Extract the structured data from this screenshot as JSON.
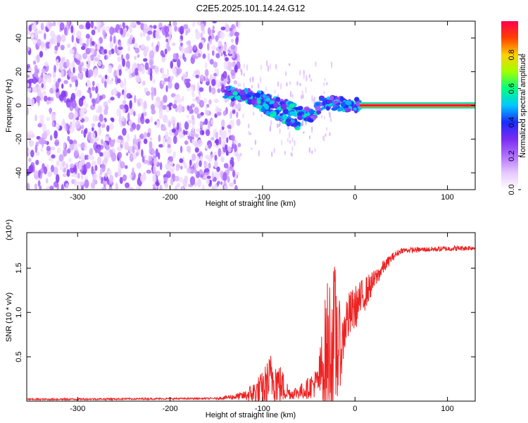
{
  "title": "C2E5.2025.101.14.24.G12",
  "chart_data": [
    {
      "type": "heatmap",
      "xlabel": "Height of straight line (km)",
      "ylabel": "Frequency (Hz)",
      "xlim": [
        -355,
        130
      ],
      "ylim": [
        -50,
        50
      ],
      "xticks": [
        -300,
        -200,
        -100,
        0,
        100
      ],
      "yticks": [
        -40,
        -20,
        0,
        20,
        40
      ],
      "colorbar": {
        "label": "Normalized spectral amplitude",
        "range": [
          0,
          1
        ],
        "ticks": [
          "0.0",
          "0.2",
          "0.4",
          "0.6",
          "0.8"
        ],
        "tick_values": [
          0.0,
          0.2,
          0.4,
          0.6,
          0.8
        ],
        "colormap": [
          "#ffffff",
          "#e6c8ff",
          "#b070ff",
          "#7a2cf0",
          "#1a2cff",
          "#00c8ff",
          "#00ff80",
          "#a0ff00",
          "#ffd000",
          "#ff4000",
          "#ff0050"
        ]
      },
      "noise_region": {
        "x": [
          -355,
          -125
        ],
        "y": [
          -50,
          50
        ],
        "amplitude": [
          0.05,
          0.3
        ]
      },
      "ridge": [
        {
          "x": -140,
          "y": 8
        },
        {
          "x": -120,
          "y": 6
        },
        {
          "x": -100,
          "y": 4
        },
        {
          "x": -80,
          "y": 0
        },
        {
          "x": -60,
          "y": -4
        },
        {
          "x": -45,
          "y": -6
        },
        {
          "x": -35,
          "y": 2
        },
        {
          "x": -20,
          "y": 1
        },
        {
          "x": 0,
          "y": 0
        },
        {
          "x": 130,
          "y": 0
        }
      ],
      "lower_branch": [
        {
          "x": -110,
          "y": 2
        },
        {
          "x": -90,
          "y": -4
        },
        {
          "x": -70,
          "y": -10
        },
        {
          "x": -60,
          "y": -12
        }
      ],
      "tone": {
        "x": [
          5,
          130
        ],
        "y": 0,
        "amplitude": 1.0
      }
    },
    {
      "type": "line",
      "xlabel": "Height of straight line (km)",
      "ylabel": "SNR (10 * v/v)",
      "y_multiplier": "(x10⁴)",
      "xlim": [
        -355,
        130
      ],
      "ylim": [
        0,
        1.9
      ],
      "xticks": [
        -300,
        -200,
        -100,
        0,
        100
      ],
      "yticks": [
        "0.5",
        "1.0",
        "1.5"
      ],
      "ytick_values": [
        0.5,
        1.0,
        1.5
      ],
      "color": "#ee2222",
      "envelope": [
        {
          "x": -355,
          "mean": 0.02,
          "spread": 0.01
        },
        {
          "x": -150,
          "mean": 0.03,
          "spread": 0.01
        },
        {
          "x": -120,
          "mean": 0.06,
          "spread": 0.05
        },
        {
          "x": -100,
          "mean": 0.12,
          "spread": 0.22
        },
        {
          "x": -90,
          "mean": 0.28,
          "spread": 0.3
        },
        {
          "x": -80,
          "mean": 0.18,
          "spread": 0.22
        },
        {
          "x": -70,
          "mean": 0.08,
          "spread": 0.06
        },
        {
          "x": -55,
          "mean": 0.12,
          "spread": 0.1
        },
        {
          "x": -40,
          "mean": 0.22,
          "spread": 0.18
        },
        {
          "x": -30,
          "mean": 0.55,
          "spread": 0.85
        },
        {
          "x": -20,
          "mean": 0.7,
          "spread": 0.9
        },
        {
          "x": -15,
          "mean": 0.55,
          "spread": 0.3
        },
        {
          "x": -10,
          "mean": 0.9,
          "spread": 0.3
        },
        {
          "x": 0,
          "mean": 1.05,
          "spread": 0.25
        },
        {
          "x": 10,
          "mean": 1.2,
          "spread": 0.2
        },
        {
          "x": 20,
          "mean": 1.35,
          "spread": 0.12
        },
        {
          "x": 30,
          "mean": 1.5,
          "spread": 0.08
        },
        {
          "x": 40,
          "mean": 1.62,
          "spread": 0.05
        },
        {
          "x": 50,
          "mean": 1.7,
          "spread": 0.03
        },
        {
          "x": 130,
          "mean": 1.73,
          "spread": 0.03
        }
      ]
    }
  ]
}
